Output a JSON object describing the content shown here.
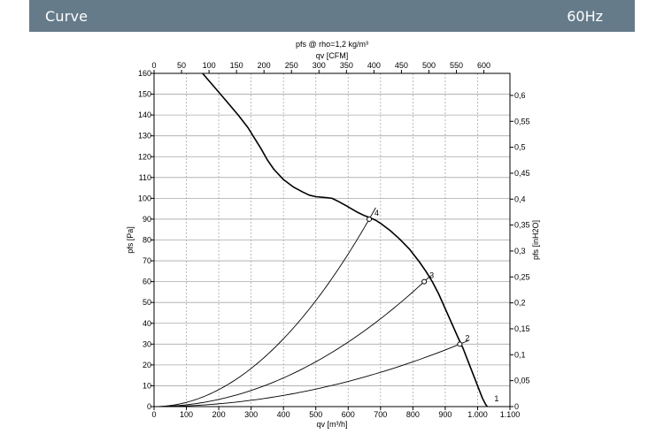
{
  "header": {
    "title": "Curve",
    "frequency": "60Hz",
    "background_color": "#667b8a"
  },
  "chart_data": {
    "type": "line",
    "title": "pfs @ rho=1,2 kg/m³",
    "xlabel": "qv [m³/h]",
    "ylabel": "pfs [Pa]",
    "x2label": "qv [CFM]",
    "y2label": "pfs [inH2O]",
    "xlim": [
      0,
      1100
    ],
    "ylim": [
      0,
      160
    ],
    "x2lim": [
      0,
      647.4
    ],
    "y2lim": [
      0,
      0.6425
    ],
    "grid": true,
    "x_ticks": [
      0,
      100,
      200,
      300,
      400,
      500,
      600,
      700,
      800,
      900,
      1000,
      1100
    ],
    "x_tick_labels": [
      "0",
      "100",
      "200",
      "300",
      "400",
      "500",
      "600",
      "700",
      "800",
      "900",
      "1.000",
      "1.100"
    ],
    "y_ticks": [
      0,
      10,
      20,
      30,
      40,
      50,
      60,
      70,
      80,
      90,
      100,
      110,
      120,
      130,
      140,
      150,
      160
    ],
    "y_tick_labels": [
      "0",
      "10",
      "20",
      "30",
      "40",
      "50",
      "60",
      "70",
      "80",
      "90",
      "100",
      "110",
      "120",
      "130",
      "140",
      "150",
      "160"
    ],
    "x2_ticks": [
      0,
      50,
      100,
      150,
      200,
      250,
      300,
      350,
      400,
      450,
      500,
      550,
      600
    ],
    "x2_tick_labels": [
      "0",
      "50",
      "100",
      "150",
      "200",
      "250",
      "300",
      "350",
      "400",
      "450",
      "500",
      "550",
      "600"
    ],
    "y2_ticks": [
      0,
      0.05,
      0.1,
      0.15,
      0.2,
      0.25,
      0.3,
      0.35,
      0.4,
      0.45,
      0.5,
      0.55,
      0.6
    ],
    "y2_tick_labels": [
      "0",
      "0,05",
      "0,1",
      "0,15",
      "0,2",
      "0,25",
      "0,3",
      "0,35",
      "0,4",
      "0,45",
      "0,5",
      "0,55",
      "0,6"
    ],
    "fan_curve": {
      "x": [
        150,
        175,
        200,
        230,
        260,
        290,
        310,
        330,
        350,
        370,
        400,
        430,
        460,
        480,
        500,
        520,
        535,
        550,
        570,
        590,
        610,
        630,
        650,
        670,
        685,
        700,
        730,
        760,
        790,
        820,
        840,
        860,
        880,
        900,
        920,
        940,
        955,
        970,
        985,
        1000,
        1015,
        1025,
        1030
      ],
      "y": [
        160,
        155.5,
        151,
        145.5,
        140,
        134,
        129,
        124,
        118.5,
        114,
        109,
        105.5,
        103,
        101.5,
        100.8,
        100.5,
        100.3,
        100,
        98.5,
        96.8,
        95,
        93.2,
        91.7,
        90.5,
        89.5,
        88,
        84.5,
        80.3,
        75.5,
        69.5,
        65,
        60,
        54,
        47,
        40,
        33,
        28,
        22,
        16,
        10,
        4,
        1,
        0
      ]
    },
    "system_curves": [
      {
        "label": "4",
        "x_op": 665,
        "y_op": 90,
        "x_end": 685
      },
      {
        "label": "3",
        "x_op": 835,
        "y_op": 60,
        "x_end": 855
      },
      {
        "label": "2",
        "x_op": 945,
        "y_op": 30,
        "x_end": 975
      }
    ],
    "operating_points": [
      {
        "label": "1",
        "x": 1030,
        "y": 0
      },
      {
        "label": "2",
        "x": 945,
        "y": 30
      },
      {
        "label": "3",
        "x": 835,
        "y": 60
      },
      {
        "label": "4",
        "x": 665,
        "y": 90
      }
    ]
  }
}
